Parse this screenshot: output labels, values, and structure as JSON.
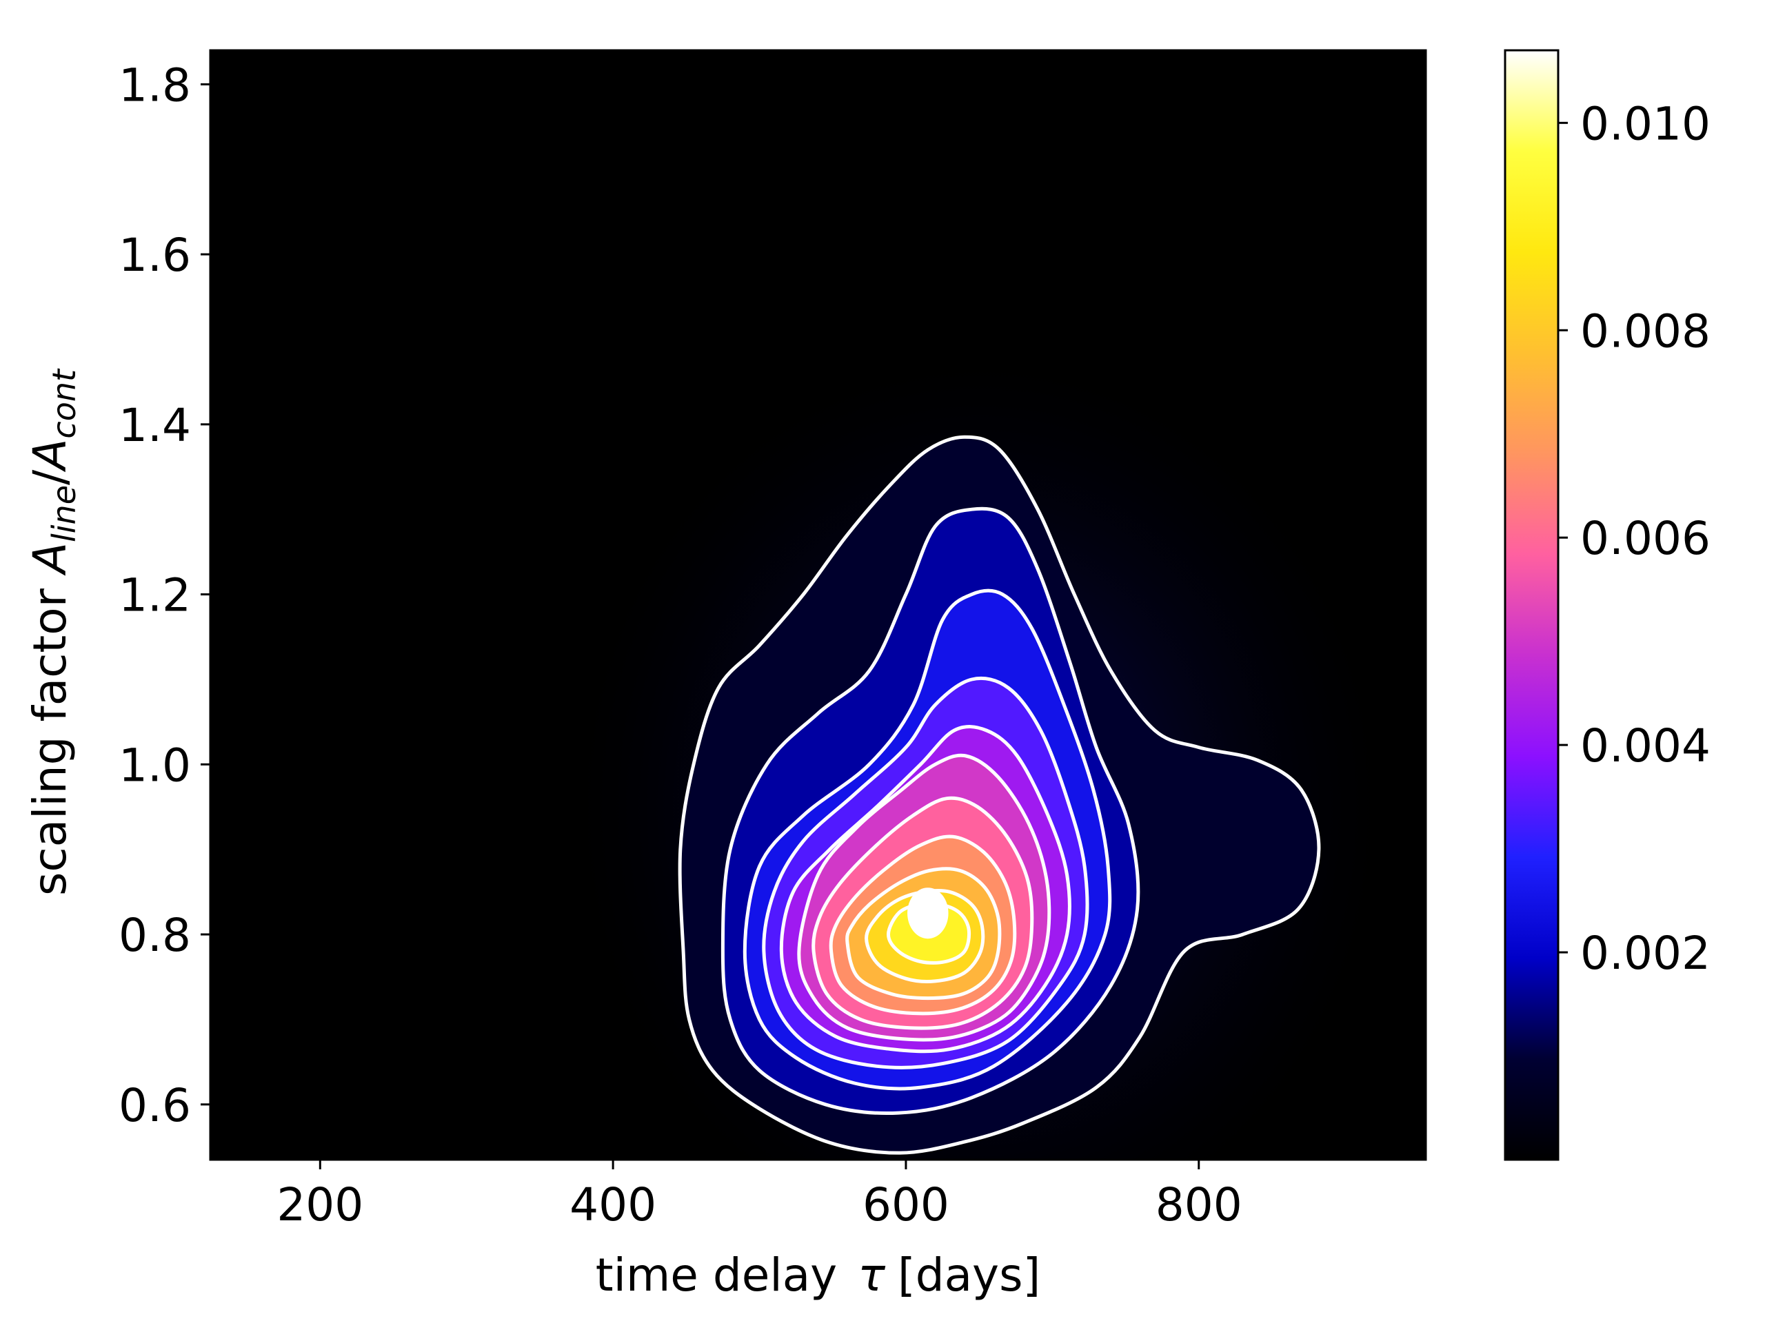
{
  "chart_data": {
    "type": "heatmap",
    "subtype": "2d-density-with-contours",
    "title": "",
    "xlabel": {
      "text": "time delay",
      "symbol": "τ",
      "unit": "[days]"
    },
    "ylabel": {
      "text": "scaling factor",
      "numerator": "A",
      "numerator_sub": "line",
      "separator": "/",
      "denominator": "A",
      "denominator_sub": "cont"
    },
    "xlim": [
      125,
      955
    ],
    "ylim": [
      0.535,
      1.84
    ],
    "x_ticks": [
      200,
      400,
      600,
      800
    ],
    "x_tick_labels": [
      "200",
      "400",
      "600",
      "800"
    ],
    "y_ticks": [
      0.6,
      0.8,
      1.0,
      1.2,
      1.4,
      1.6,
      1.8
    ],
    "y_tick_labels": [
      "0.6",
      "0.8",
      "1.0",
      "1.2",
      "1.4",
      "1.6",
      "1.8"
    ],
    "grid": false,
    "colormap": "gnuplot2",
    "colormap_stops": [
      "#000000",
      "#000033",
      "#0000c8",
      "#2020ff",
      "#8c10ff",
      "#c830d0",
      "#ff60a0",
      "#ff9560",
      "#ffc030",
      "#ffe810",
      "#ffff40",
      "#ffffff"
    ],
    "colorbar": {
      "range": [
        0,
        0.0107
      ],
      "ticks": [
        0.002,
        0.004,
        0.006,
        0.008,
        0.01
      ],
      "tick_labels": [
        "0.002",
        "0.004",
        "0.006",
        "0.008",
        "0.010"
      ]
    },
    "density_peak": {
      "x": 615,
      "y": 0.825,
      "value": 0.0107
    },
    "contour_color": "#ffffff",
    "contour_levels": 11,
    "contours": [
      [
        [
          448,
          0.78
        ],
        [
          452,
          0.7
        ],
        [
          468,
          0.64
        ],
        [
          500,
          0.595
        ],
        [
          548,
          0.555
        ],
        [
          596,
          0.543
        ],
        [
          640,
          0.556
        ],
        [
          680,
          0.578
        ],
        [
          730,
          0.62
        ],
        [
          760,
          0.68
        ],
        [
          790,
          0.78
        ],
        [
          830,
          0.8
        ],
        [
          868,
          0.83
        ],
        [
          882,
          0.9
        ],
        [
          870,
          0.97
        ],
        [
          840,
          1.005
        ],
        [
          800,
          1.02
        ],
        [
          770,
          1.04
        ],
        [
          740,
          1.11
        ],
        [
          715,
          1.2
        ],
        [
          690,
          1.3
        ],
        [
          664,
          1.37
        ],
        [
          640,
          1.385
        ],
        [
          615,
          1.37
        ],
        [
          590,
          1.33
        ],
        [
          560,
          1.27
        ],
        [
          530,
          1.2
        ],
        [
          500,
          1.14
        ],
        [
          472,
          1.09
        ],
        [
          455,
          1.0
        ],
        [
          446,
          0.9
        ]
      ],
      [
        [
          475,
          0.78
        ],
        [
          480,
          0.7
        ],
        [
          500,
          0.64
        ],
        [
          545,
          0.6
        ],
        [
          595,
          0.59
        ],
        [
          645,
          0.608
        ],
        [
          700,
          0.66
        ],
        [
          740,
          0.74
        ],
        [
          758,
          0.83
        ],
        [
          752,
          0.93
        ],
        [
          730,
          1.02
        ],
        [
          712,
          1.12
        ],
        [
          690,
          1.23
        ],
        [
          670,
          1.29
        ],
        [
          645,
          1.3
        ],
        [
          620,
          1.28
        ],
        [
          600,
          1.2
        ],
        [
          575,
          1.11
        ],
        [
          540,
          1.06
        ],
        [
          505,
          1.0
        ],
        [
          480,
          0.9
        ]
      ],
      [
        [
          490,
          0.78
        ],
        [
          500,
          0.7
        ],
        [
          525,
          0.655
        ],
        [
          565,
          0.625
        ],
        [
          610,
          0.62
        ],
        [
          660,
          0.645
        ],
        [
          710,
          0.72
        ],
        [
          736,
          0.8
        ],
        [
          738,
          0.88
        ],
        [
          728,
          0.97
        ],
        [
          708,
          1.07
        ],
        [
          686,
          1.16
        ],
        [
          666,
          1.2
        ],
        [
          645,
          1.2
        ],
        [
          625,
          1.17
        ],
        [
          605,
          1.07
        ],
        [
          575,
          1.0
        ],
        [
          530,
          0.94
        ],
        [
          500,
          0.88
        ]
      ],
      [
        [
          503,
          0.78
        ],
        [
          513,
          0.71
        ],
        [
          538,
          0.665
        ],
        [
          580,
          0.645
        ],
        [
          625,
          0.648
        ],
        [
          670,
          0.675
        ],
        [
          705,
          0.74
        ],
        [
          722,
          0.8
        ],
        [
          722,
          0.88
        ],
        [
          710,
          0.96
        ],
        [
          692,
          1.04
        ],
        [
          670,
          1.09
        ],
        [
          645,
          1.1
        ],
        [
          620,
          1.07
        ],
        [
          600,
          1.02
        ],
        [
          565,
          0.965
        ],
        [
          530,
          0.91
        ],
        [
          510,
          0.85
        ]
      ],
      [
        [
          515,
          0.78
        ],
        [
          525,
          0.72
        ],
        [
          552,
          0.68
        ],
        [
          590,
          0.665
        ],
        [
          630,
          0.665
        ],
        [
          668,
          0.69
        ],
        [
          695,
          0.74
        ],
        [
          710,
          0.8
        ],
        [
          710,
          0.87
        ],
        [
          697,
          0.94
        ],
        [
          676,
          1.01
        ],
        [
          655,
          1.04
        ],
        [
          633,
          1.04
        ],
        [
          610,
          1.0
        ],
        [
          580,
          0.95
        ],
        [
          548,
          0.9
        ],
        [
          523,
          0.85
        ]
      ],
      [
        [
          527,
          0.78
        ],
        [
          537,
          0.725
        ],
        [
          560,
          0.69
        ],
        [
          598,
          0.677
        ],
        [
          635,
          0.68
        ],
        [
          668,
          0.705
        ],
        [
          688,
          0.75
        ],
        [
          697,
          0.8
        ],
        [
          696,
          0.865
        ],
        [
          684,
          0.93
        ],
        [
          663,
          0.985
        ],
        [
          641,
          1.01
        ],
        [
          620,
          1.0
        ],
        [
          597,
          0.97
        ],
        [
          566,
          0.925
        ],
        [
          540,
          0.87
        ]
      ],
      [
        [
          537,
          0.78
        ],
        [
          546,
          0.73
        ],
        [
          569,
          0.7
        ],
        [
          603,
          0.69
        ],
        [
          637,
          0.695
        ],
        [
          664,
          0.72
        ],
        [
          681,
          0.76
        ],
        [
          686,
          0.81
        ],
        [
          683,
          0.865
        ],
        [
          669,
          0.915
        ],
        [
          649,
          0.95
        ],
        [
          628,
          0.96
        ],
        [
          605,
          0.94
        ],
        [
          580,
          0.905
        ],
        [
          555,
          0.86
        ],
        [
          541,
          0.82
        ]
      ],
      [
        [
          549,
          0.78
        ],
        [
          556,
          0.74
        ],
        [
          578,
          0.715
        ],
        [
          609,
          0.707
        ],
        [
          638,
          0.713
        ],
        [
          660,
          0.735
        ],
        [
          672,
          0.77
        ],
        [
          674,
          0.815
        ],
        [
          668,
          0.86
        ],
        [
          653,
          0.897
        ],
        [
          632,
          0.915
        ],
        [
          610,
          0.905
        ],
        [
          588,
          0.88
        ],
        [
          566,
          0.845
        ],
        [
          552,
          0.81
        ]
      ],
      [
        [
          560,
          0.79
        ],
        [
          567,
          0.75
        ],
        [
          590,
          0.73
        ],
        [
          615,
          0.725
        ],
        [
          639,
          0.73
        ],
        [
          656,
          0.75
        ],
        [
          663,
          0.78
        ],
        [
          663,
          0.82
        ],
        [
          654,
          0.855
        ],
        [
          637,
          0.875
        ],
        [
          616,
          0.875
        ],
        [
          595,
          0.86
        ],
        [
          575,
          0.835
        ],
        [
          563,
          0.81
        ]
      ],
      [
        [
          573,
          0.795
        ],
        [
          581,
          0.765
        ],
        [
          600,
          0.748
        ],
        [
          620,
          0.745
        ],
        [
          640,
          0.755
        ],
        [
          651,
          0.78
        ],
        [
          652,
          0.81
        ],
        [
          645,
          0.835
        ],
        [
          630,
          0.85
        ],
        [
          612,
          0.85
        ],
        [
          594,
          0.84
        ],
        [
          580,
          0.82
        ]
      ],
      [
        [
          588,
          0.8
        ],
        [
          595,
          0.78
        ],
        [
          610,
          0.768
        ],
        [
          627,
          0.768
        ],
        [
          640,
          0.78
        ],
        [
          643,
          0.805
        ],
        [
          637,
          0.825
        ],
        [
          624,
          0.835
        ],
        [
          608,
          0.835
        ],
        [
          595,
          0.825
        ]
      ]
    ]
  }
}
